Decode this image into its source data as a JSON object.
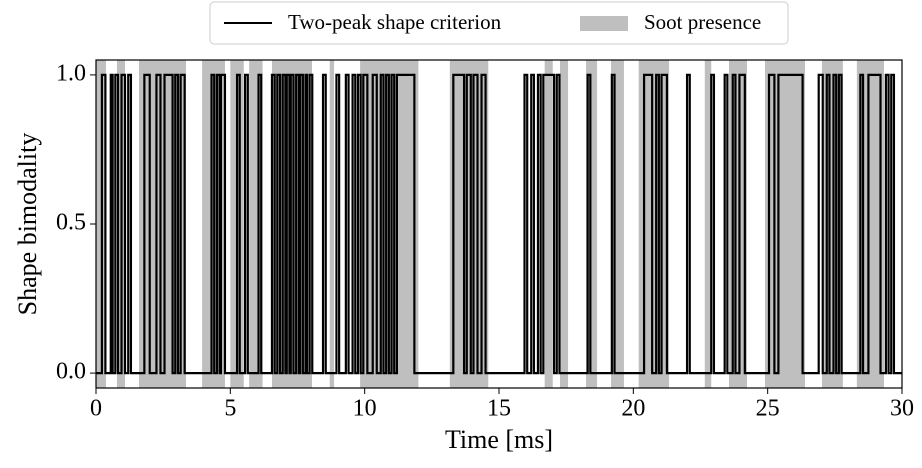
{
  "chart_data": {
    "type": "step",
    "xlabel": "Time [ms]",
    "ylabel": "Shape bimodality",
    "xlim": [
      0,
      30
    ],
    "ylim": [
      -0.05,
      1.05
    ],
    "xticks": [
      0,
      5,
      10,
      15,
      20,
      25,
      30
    ],
    "yticks": [
      {
        "value": 0,
        "label": "0.0"
      },
      {
        "value": 0.5,
        "label": "0.5"
      },
      {
        "value": 1,
        "label": "1.0"
      }
    ],
    "legend": "top-center",
    "series": [
      {
        "name": "Two-peak shape criterion",
        "color": "#000000",
        "x": [
          0,
          0.22,
          0.35,
          0.55,
          0.62,
          0.72,
          0.82,
          0.95,
          1.08,
          1.2,
          1.3,
          1.8,
          2.0,
          2.25,
          2.4,
          2.55,
          2.85,
          2.95,
          3.05,
          3.15,
          3.3,
          4.3,
          4.4,
          4.5,
          4.6,
          4.65,
          4.8,
          5.25,
          5.35,
          5.55,
          5.65,
          6.05,
          6.15,
          6.55,
          6.65,
          6.75,
          6.85,
          6.95,
          7.05,
          7.1,
          7.2,
          7.25,
          7.35,
          7.45,
          7.55,
          7.6,
          7.7,
          7.8,
          7.85,
          7.95,
          8.05,
          8.45,
          8.55,
          8.95,
          9.05,
          9.3,
          9.4,
          9.55,
          9.65,
          9.75,
          9.85,
          9.95,
          10.1,
          10.3,
          10.45,
          10.6,
          10.7,
          10.8,
          10.9,
          11.0,
          11.1,
          11.2,
          11.85,
          13.3,
          13.7,
          13.8,
          13.95,
          14.05,
          14.2,
          14.35,
          14.5,
          15.95,
          16.05,
          16.2,
          16.3,
          16.45,
          16.55,
          16.65,
          17.05,
          17.15,
          17.25,
          18.3,
          18.4,
          19.2,
          19.3,
          20.4,
          20.7,
          20.85,
          20.95,
          21.05,
          21.25,
          22.0,
          22.1,
          22.9,
          23.0,
          23.4,
          23.5,
          23.7,
          23.8,
          23.95,
          24.15,
          25.05,
          25.25,
          25.4,
          26.3,
          26.9,
          27.05,
          27.2,
          27.3,
          27.45,
          27.55,
          27.65,
          27.75,
          28.45,
          28.55,
          28.75,
          29.2,
          29.4,
          29.5,
          29.6,
          29.7,
          30
        ],
        "values": [
          0,
          1,
          0,
          1,
          0,
          1,
          0,
          1,
          0,
          1,
          0,
          1,
          0,
          1,
          0,
          1,
          0,
          1,
          0,
          1,
          0,
          1,
          0,
          1,
          0,
          1,
          0,
          1,
          0,
          1,
          0,
          1,
          0,
          1,
          0,
          1,
          0,
          1,
          0,
          1,
          0,
          1,
          0,
          1,
          0,
          1,
          0,
          1,
          0,
          1,
          0,
          1,
          0,
          1,
          0,
          1,
          0,
          1,
          0,
          1,
          0,
          1,
          0,
          1,
          0,
          1,
          0,
          1,
          0,
          1,
          0,
          1,
          0,
          1,
          0,
          1,
          0,
          1,
          0,
          1,
          0,
          1,
          0,
          1,
          0,
          1,
          0,
          1,
          0,
          1,
          0,
          1,
          0,
          1,
          0,
          1,
          0,
          1,
          0,
          1,
          0,
          1,
          0,
          1,
          0,
          1,
          0,
          1,
          0,
          1,
          0,
          1,
          0,
          1,
          0,
          1,
          0,
          1,
          0,
          1,
          0,
          1,
          0,
          1,
          0,
          1,
          0,
          1,
          0,
          1,
          0,
          0
        ]
      },
      {
        "name": "Soot presence",
        "color": "#bfbfbf",
        "intervals": [
          [
            0,
            0.37
          ],
          [
            0.78,
            1.08
          ],
          [
            1.6,
            3.35
          ],
          [
            3.95,
            4.8
          ],
          [
            5.0,
            5.5
          ],
          [
            5.7,
            6.2
          ],
          [
            6.55,
            8.04
          ],
          [
            8.7,
            8.86
          ],
          [
            9.83,
            12.0
          ],
          [
            13.17,
            14.6
          ],
          [
            16.7,
            17.0
          ],
          [
            17.27,
            17.57
          ],
          [
            18.24,
            18.65
          ],
          [
            19.17,
            19.65
          ],
          [
            20.2,
            21.33
          ],
          [
            22.66,
            22.9
          ],
          [
            23.56,
            24.23
          ],
          [
            24.9,
            26.39
          ],
          [
            27.02,
            27.8
          ],
          [
            28.32,
            29.33
          ]
        ]
      }
    ]
  }
}
